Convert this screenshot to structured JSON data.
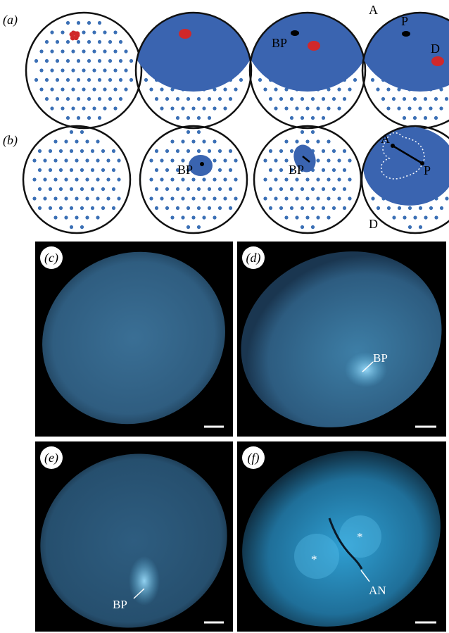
{
  "panels": {
    "a": {
      "label": "(a)",
      "labels": [
        "BP",
        "A",
        "P",
        "D"
      ]
    },
    "b": {
      "label": "(b)",
      "labels": [
        "BP",
        "BP",
        "A",
        "P",
        "D"
      ]
    },
    "c": {
      "label": "(c)"
    },
    "d": {
      "label": "(d)",
      "annotation": "BP"
    },
    "e": {
      "label": "(e)",
      "annotation": "BP"
    },
    "f": {
      "label": "(f)",
      "annotations": [
        "AN",
        "*",
        "*"
      ]
    }
  }
}
